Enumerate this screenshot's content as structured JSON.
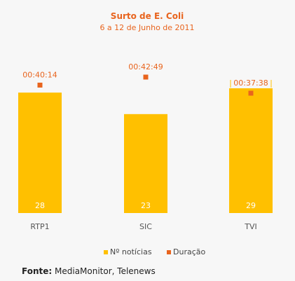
{
  "colors": {
    "bars": "#ffc000",
    "duration": "#e8641e",
    "title": "#e8641e",
    "background": "#f7f7f7"
  },
  "source": {
    "label": "Fonte:",
    "text": "MediaMonitor, Telenews"
  },
  "chart_data": {
    "type": "bar",
    "title": "Surto de E. Coli",
    "subtitle": "6 a 12 de Junho de 2011",
    "categories": [
      "RTP1",
      "SIC",
      "TVI"
    ],
    "series": [
      {
        "name": "Nº notícias",
        "kind": "bar",
        "values": [
          28,
          23,
          29
        ]
      },
      {
        "name": "Duração",
        "kind": "point",
        "values": [
          "00:40:14",
          "00:42:49",
          "00:37:38"
        ]
      }
    ],
    "xlabel": "",
    "ylabel": "",
    "legend": "bottom",
    "grid": false
  }
}
